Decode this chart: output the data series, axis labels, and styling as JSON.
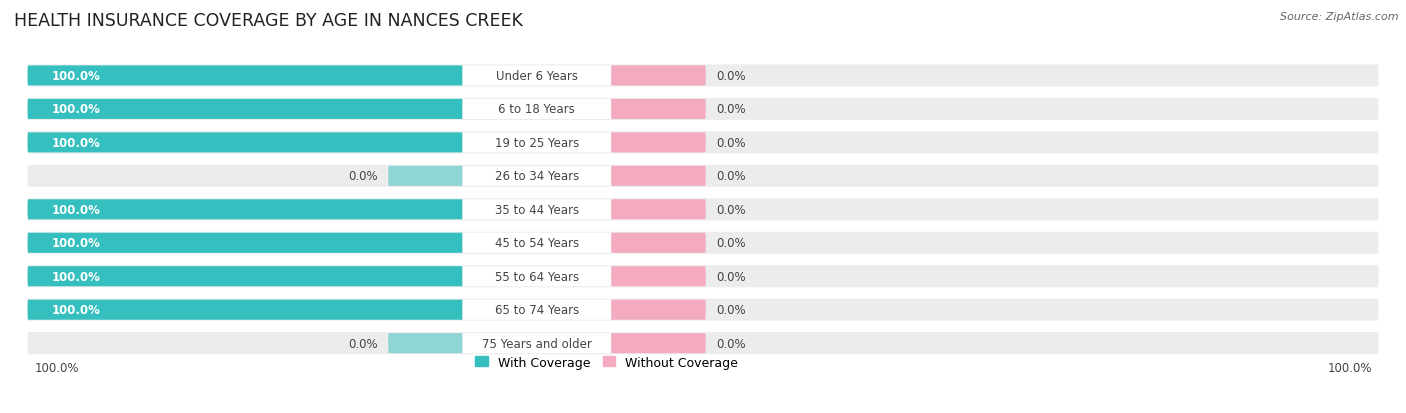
{
  "title": "HEALTH INSURANCE COVERAGE BY AGE IN NANCES CREEK",
  "source": "Source: ZipAtlas.com",
  "categories": [
    "Under 6 Years",
    "6 to 18 Years",
    "19 to 25 Years",
    "26 to 34 Years",
    "35 to 44 Years",
    "45 to 54 Years",
    "55 to 64 Years",
    "65 to 74 Years",
    "75 Years and older"
  ],
  "with_coverage": [
    100.0,
    100.0,
    100.0,
    0.0,
    100.0,
    100.0,
    100.0,
    100.0,
    0.0
  ],
  "without_coverage": [
    0.0,
    0.0,
    0.0,
    0.0,
    0.0,
    0.0,
    0.0,
    0.0,
    0.0
  ],
  "color_with": "#35BFBF",
  "color_without": "#F4AABF",
  "color_with_light": "#90D5D5",
  "bar_bg": "#ECECEC",
  "title_fontsize": 12.5,
  "label_fontsize": 8.5,
  "legend_fontsize": 9,
  "source_fontsize": 8,
  "figure_bg": "#FFFFFF",
  "text_dark": "#444444",
  "text_white": "#FFFFFF"
}
